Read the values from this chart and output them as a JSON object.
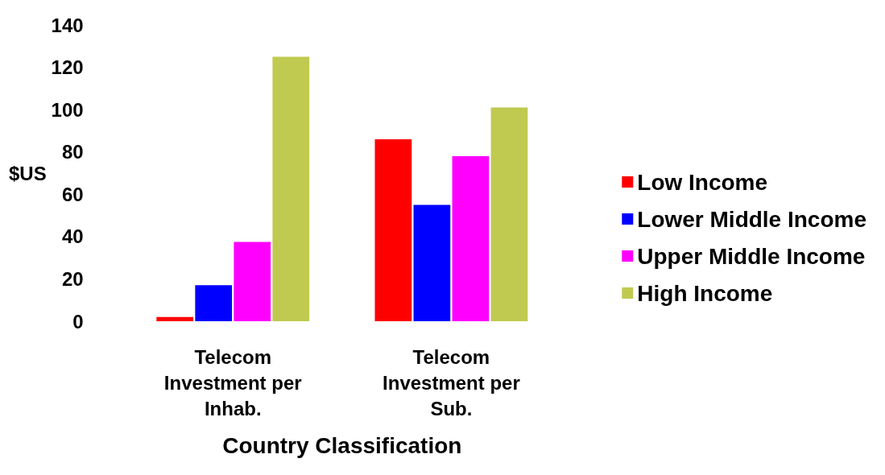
{
  "chart_data": {
    "type": "bar",
    "xlabel": "Country Classification",
    "ylabel": "$US",
    "categories": [
      "Telecom Investment per Inhab.",
      "Telecom Investment per Sub."
    ],
    "series": [
      {
        "name": "Low Income",
        "color": "#ff0000",
        "values": [
          2,
          86
        ]
      },
      {
        "name": "Lower Middle Income",
        "color": "#0000ff",
        "values": [
          17,
          55
        ]
      },
      {
        "name": "Upper Middle Income",
        "color": "#ff00ff",
        "values": [
          37.5,
          78
        ]
      },
      {
        "name": "High Income",
        "color": "#c0ca50",
        "values": [
          125,
          101
        ]
      }
    ],
    "ylim": [
      0,
      140
    ],
    "yticks": [
      0,
      20,
      40,
      60,
      80,
      100,
      120,
      140
    ],
    "grid": false,
    "legend": "right"
  }
}
